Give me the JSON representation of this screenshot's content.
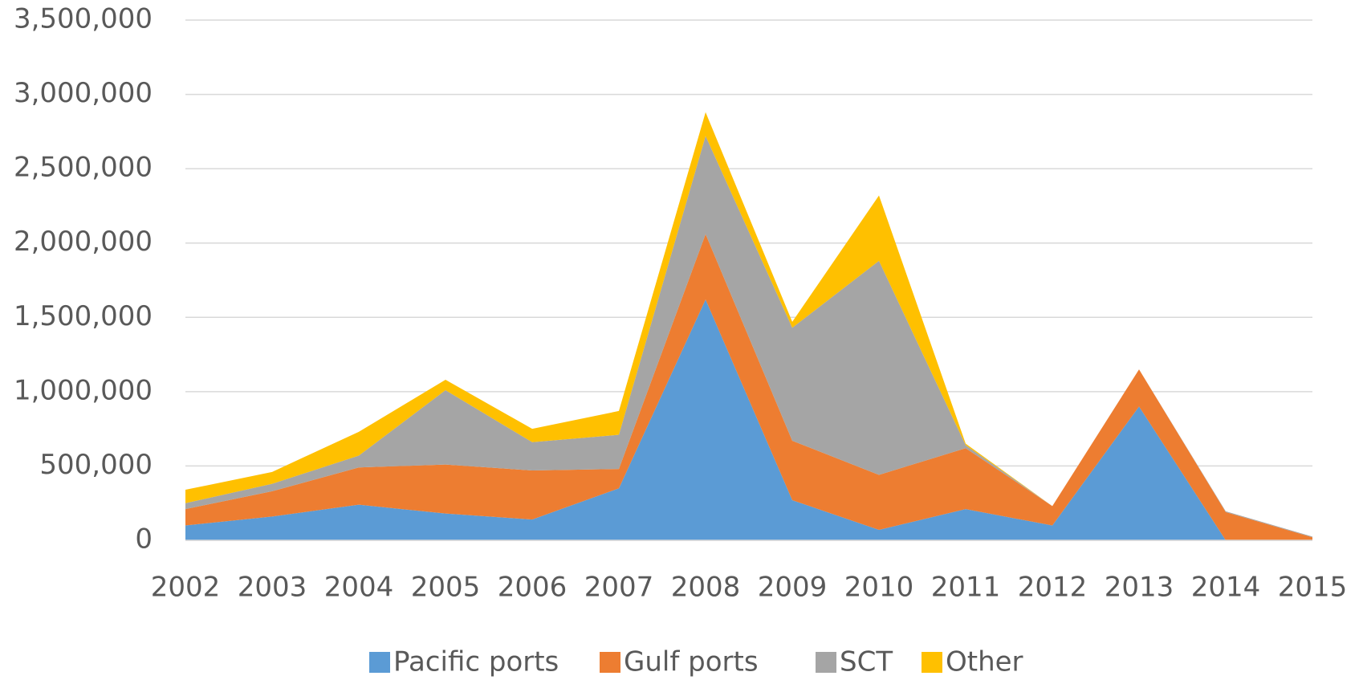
{
  "chart_data": {
    "type": "stacked_area",
    "categories": [
      "2002",
      "2003",
      "2004",
      "2005",
      "2006",
      "2007",
      "2008",
      "2009",
      "2010",
      "2011",
      "2012",
      "2013",
      "2014",
      "2015"
    ],
    "series": [
      {
        "name": "Pacific ports",
        "color": "#5b9bd5",
        "values": [
          100000,
          160000,
          240000,
          180000,
          140000,
          350000,
          1620000,
          270000,
          70000,
          210000,
          100000,
          900000,
          0,
          0
        ]
      },
      {
        "name": "Gulf ports",
        "color": "#ed7d31",
        "values": [
          110000,
          170000,
          250000,
          330000,
          330000,
          130000,
          440000,
          400000,
          370000,
          410000,
          130000,
          250000,
          190000,
          20000
        ]
      },
      {
        "name": "SCT",
        "color": "#a5a5a5",
        "values": [
          40000,
          50000,
          80000,
          500000,
          190000,
          230000,
          660000,
          760000,
          1440000,
          20000,
          0,
          0,
          5000,
          5000
        ]
      },
      {
        "name": "Other",
        "color": "#ffc000",
        "values": [
          90000,
          80000,
          160000,
          70000,
          90000,
          160000,
          160000,
          40000,
          440000,
          10000,
          0,
          0,
          0,
          0
        ]
      }
    ],
    "ylim": [
      0,
      3500000
    ],
    "yticks": [
      0,
      {
        "value": 500000,
        "label": "500,000"
      },
      {
        "value": 1000000,
        "label": "1,000,000"
      },
      {
        "value": 1500000,
        "label": "1,500,000"
      },
      {
        "value": 2000000,
        "label": "2,000,000"
      },
      {
        "value": 2500000,
        "label": "2,500,000"
      },
      {
        "value": 3000000,
        "label": "3,000,000"
      },
      {
        "value": 3500000,
        "label": "3,500,000"
      }
    ],
    "grid": true,
    "legend": "bottom"
  }
}
